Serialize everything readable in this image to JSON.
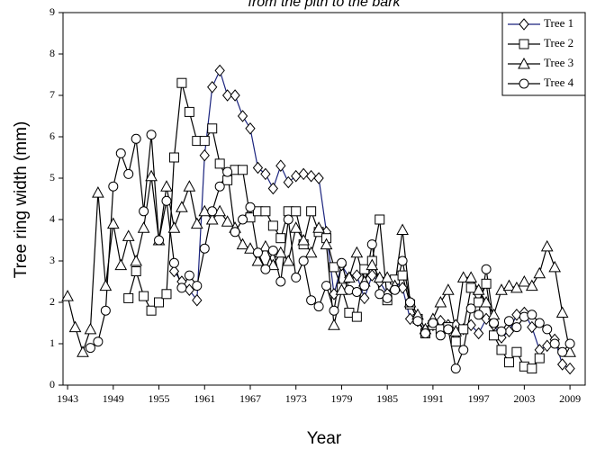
{
  "chart_data": {
    "type": "line",
    "title": "from the pith to the bark",
    "x_label": "Year",
    "y_label": "Tree ring width (mm)",
    "xlim": [
      1942.4,
      2011
    ],
    "xticks": [
      1943,
      1949,
      1955,
      1961,
      1967,
      1973,
      1979,
      1985,
      1991,
      1997,
      2003,
      2009
    ],
    "ylim": [
      0,
      9
    ],
    "yticks": [
      0,
      1,
      2,
      3,
      4,
      5,
      6,
      7,
      8,
      9
    ],
    "grid": false,
    "legend": "top-right",
    "series": [
      {
        "name": "Tree 1",
        "color": "#1a237e",
        "marker": "diamond",
        "x": [
          1957,
          1958,
          1959,
          1960,
          1961,
          1962,
          1963,
          1964,
          1965,
          1966,
          1967,
          1968,
          1969,
          1970,
          1971,
          1972,
          1973,
          1974,
          1975,
          1976,
          1977,
          1978,
          1979,
          1980,
          1981,
          1982,
          1983,
          1984,
          1985,
          1986,
          1987,
          1988,
          1989,
          1990,
          1991,
          1992,
          1993,
          1994,
          1995,
          1996,
          1997,
          1998,
          1999,
          2000,
          2001,
          2002,
          2003,
          2004,
          2005,
          2006,
          2007,
          2008,
          2009
        ],
        "values": [
          2.75,
          2.5,
          2.3,
          2.05,
          5.55,
          7.2,
          7.6,
          7.0,
          7.0,
          6.5,
          6.2,
          5.25,
          5.1,
          4.75,
          5.3,
          4.9,
          5.05,
          5.1,
          5.05,
          5.0,
          3.7,
          2.2,
          2.9,
          2.6,
          2.65,
          2.1,
          2.65,
          2.5,
          2.2,
          2.5,
          2.35,
          1.6,
          1.55,
          1.3,
          1.45,
          1.55,
          1.45,
          1.45,
          1.35,
          1.45,
          1.25,
          1.6,
          1.45,
          1.15,
          1.3,
          1.7,
          1.75,
          1.4,
          0.85,
          0.95,
          1.1,
          0.5,
          0.4
        ]
      },
      {
        "name": "Tree 2",
        "color": "#000000",
        "marker": "square",
        "x": [
          1951,
          1952,
          1953,
          1954,
          1955,
          1956,
          1957,
          1958,
          1959,
          1960,
          1961,
          1962,
          1963,
          1964,
          1965,
          1966,
          1967,
          1968,
          1969,
          1970,
          1971,
          1972,
          1973,
          1974,
          1975,
          1976,
          1977,
          1978,
          1979,
          1980,
          1981,
          1982,
          1983,
          1984,
          1985,
          1986,
          1987,
          1988,
          1989,
          1990,
          1991,
          1992,
          1993,
          1994,
          1995,
          1996,
          1997,
          1998,
          1999,
          2000,
          2001,
          2002,
          2003,
          2004,
          2005
        ],
        "values": [
          2.1,
          2.75,
          2.15,
          1.8,
          2.0,
          2.2,
          5.5,
          7.3,
          6.6,
          5.9,
          5.9,
          6.2,
          5.35,
          4.95,
          5.2,
          5.2,
          4.05,
          4.2,
          4.2,
          3.85,
          3.55,
          4.2,
          4.2,
          3.4,
          4.2,
          3.7,
          3.55,
          2.85,
          2.35,
          1.75,
          1.65,
          2.8,
          3.0,
          4.0,
          2.05,
          2.55,
          2.65,
          1.95,
          1.6,
          1.25,
          1.45,
          1.35,
          1.4,
          1.05,
          1.35,
          2.35,
          2.0,
          2.45,
          1.2,
          0.85,
          0.55,
          0.8,
          0.45,
          0.4,
          0.65
        ]
      },
      {
        "name": "Tree 3",
        "color": "#000000",
        "marker": "triangle",
        "x": [
          1943,
          1944,
          1945,
          1946,
          1947,
          1948,
          1949,
          1950,
          1951,
          1952,
          1953,
          1954,
          1955,
          1956,
          1957,
          1958,
          1959,
          1960,
          1961,
          1962,
          1963,
          1964,
          1965,
          1966,
          1967,
          1968,
          1969,
          1970,
          1971,
          1972,
          1973,
          1974,
          1975,
          1976,
          1977,
          1978,
          1979,
          1980,
          1981,
          1982,
          1983,
          1984,
          1985,
          1986,
          1987,
          1988,
          1989,
          1990,
          1991,
          1992,
          1993,
          1994,
          1995,
          1996,
          1997,
          1998,
          1999,
          2000,
          2001,
          2002,
          2003,
          2004,
          2005,
          2006,
          2007,
          2008,
          2009
        ],
        "values": [
          2.15,
          1.4,
          0.8,
          1.35,
          4.65,
          2.4,
          3.9,
          2.9,
          3.6,
          3.0,
          3.8,
          5.05,
          3.5,
          4.8,
          3.8,
          4.3,
          4.8,
          3.9,
          4.2,
          4.0,
          4.2,
          3.95,
          3.8,
          3.4,
          3.3,
          3.0,
          3.35,
          2.9,
          3.2,
          3.0,
          3.8,
          3.5,
          3.2,
          3.8,
          3.4,
          1.45,
          2.3,
          2.6,
          3.2,
          2.5,
          2.9,
          2.6,
          2.6,
          2.4,
          3.75,
          2.0,
          1.7,
          1.35,
          1.6,
          2.0,
          2.3,
          1.3,
          2.6,
          2.6,
          2.3,
          2.0,
          1.7,
          2.3,
          2.4,
          2.35,
          2.5,
          2.4,
          2.7,
          3.35,
          2.85,
          1.75,
          0.8
        ]
      },
      {
        "name": "Tree 4",
        "color": "#000000",
        "marker": "circle",
        "x": [
          1946,
          1947,
          1948,
          1949,
          1950,
          1951,
          1952,
          1953,
          1954,
          1955,
          1956,
          1957,
          1958,
          1959,
          1960,
          1961,
          1962,
          1963,
          1964,
          1965,
          1966,
          1967,
          1968,
          1969,
          1970,
          1971,
          1972,
          1973,
          1974,
          1975,
          1976,
          1977,
          1978,
          1979,
          1980,
          1981,
          1982,
          1983,
          1984,
          1985,
          1986,
          1987,
          1988,
          1989,
          1990,
          1991,
          1992,
          1993,
          1994,
          1995,
          1996,
          1997,
          1998,
          1999,
          2000,
          2001,
          2002,
          2003,
          2004,
          2005,
          2006,
          2007,
          2008,
          2009
        ],
        "values": [
          0.9,
          1.05,
          1.8,
          4.8,
          5.6,
          5.1,
          5.95,
          4.2,
          6.05,
          3.5,
          4.45,
          2.95,
          2.35,
          2.65,
          2.4,
          3.3,
          4.2,
          4.8,
          5.15,
          3.7,
          4.0,
          4.3,
          3.2,
          2.8,
          3.25,
          2.5,
          4.0,
          2.6,
          3.0,
          2.05,
          1.9,
          2.4,
          1.8,
          2.95,
          2.3,
          2.25,
          2.4,
          3.4,
          2.2,
          2.1,
          2.3,
          3.0,
          2.0,
          1.55,
          1.25,
          1.5,
          1.2,
          1.35,
          0.4,
          0.85,
          1.85,
          1.7,
          2.8,
          1.5,
          1.3,
          1.55,
          1.4,
          1.65,
          1.7,
          1.5,
          1.35,
          1.0,
          0.8,
          1.0
        ]
      }
    ]
  }
}
